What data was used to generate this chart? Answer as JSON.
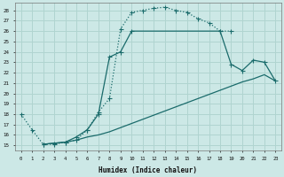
{
  "xlabel": "Humidex (Indice chaleur)",
  "bg_color": "#cce8e6",
  "grid_color": "#b0d4d0",
  "line_color": "#1a6b6b",
  "xlim": [
    -0.5,
    23.5
  ],
  "ylim": [
    14.5,
    28.7
  ],
  "xticks": [
    0,
    1,
    2,
    3,
    4,
    5,
    6,
    7,
    8,
    9,
    10,
    11,
    12,
    13,
    14,
    15,
    16,
    17,
    18,
    19,
    20,
    21,
    22,
    23
  ],
  "yticks": [
    15,
    16,
    17,
    18,
    19,
    20,
    21,
    22,
    23,
    24,
    25,
    26,
    27,
    28
  ],
  "line1_x": [
    0,
    1,
    2,
    3,
    4,
    5,
    6,
    7,
    8,
    9,
    10,
    11,
    12,
    13,
    14,
    15,
    16,
    17,
    18,
    19
  ],
  "line1_y": [
    18.0,
    16.5,
    15.1,
    15.1,
    15.3,
    15.5,
    16.5,
    18.2,
    19.5,
    26.2,
    27.8,
    28.0,
    28.2,
    28.3,
    28.0,
    27.8,
    27.2,
    26.8,
    26.0,
    26.0
  ],
  "line2_x": [
    2,
    3,
    4,
    5,
    6,
    7,
    8,
    9,
    10,
    18,
    19,
    20,
    21,
    22,
    23
  ],
  "line2_y": [
    15.1,
    15.2,
    15.3,
    15.8,
    16.5,
    18.0,
    23.5,
    24.0,
    26.0,
    26.0,
    22.8,
    22.2,
    23.2,
    23.0,
    21.2
  ],
  "line3_x": [
    2,
    3,
    4,
    5,
    6,
    7,
    8,
    9,
    10,
    11,
    12,
    13,
    14,
    15,
    16,
    17,
    18,
    19,
    20,
    21,
    22,
    23
  ],
  "line3_y": [
    15.1,
    15.2,
    15.3,
    15.5,
    15.8,
    16.0,
    16.3,
    16.7,
    17.1,
    17.5,
    17.9,
    18.3,
    18.7,
    19.1,
    19.5,
    19.9,
    20.3,
    20.7,
    21.1,
    21.4,
    21.8,
    21.2
  ]
}
